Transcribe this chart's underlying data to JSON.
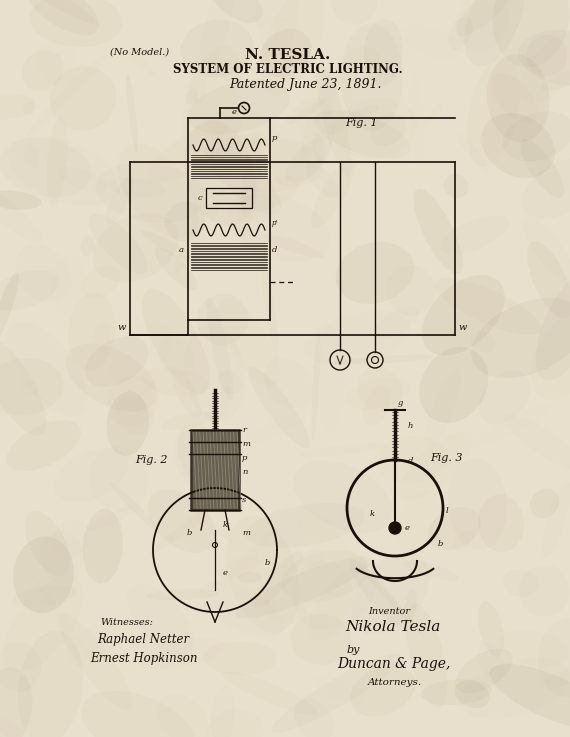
{
  "bg_color": "#e8e0cc",
  "title_line1": "N. TESLA.",
  "title_line2": "SYSTEM OF ELECTRIC LIGHTING.",
  "title_line3": "Patented June 23, 1891.",
  "no_model": "(No Model.)",
  "fig1_label": "Fig. 1",
  "fig2_label": "Fig. 2",
  "fig3_label": "Fig. 3",
  "witnesses_label": "Witnesses:",
  "witness1": "Raphael Netter",
  "witness2": "Ernest Hopkinson",
  "inventor_label": "Inventor",
  "inventor_name": "Nikola Tesla",
  "by_label": "by",
  "attorney_name": "Duncan & Page,",
  "attorneys_label": "Attorneys.",
  "ink_color": "#1a1008",
  "line_color": "#1a1008",
  "socket_color": "#3a3028",
  "socket_fill": "#6a6050"
}
